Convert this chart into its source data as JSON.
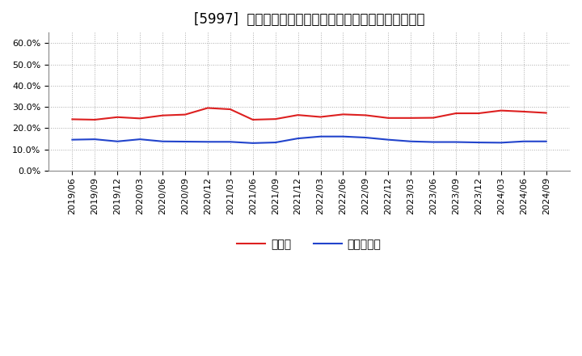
{
  "title": "[5997]  現預金、有利子負債の総資産に対する比率の推移",
  "x_labels": [
    "2019/06",
    "2019/09",
    "2019/12",
    "2020/03",
    "2020/06",
    "2020/09",
    "2020/12",
    "2021/03",
    "2021/06",
    "2021/09",
    "2021/12",
    "2022/03",
    "2022/06",
    "2022/09",
    "2022/12",
    "2023/03",
    "2023/06",
    "2023/09",
    "2023/12",
    "2024/03",
    "2024/06",
    "2024/09"
  ],
  "cash": [
    0.242,
    0.24,
    0.252,
    0.246,
    0.26,
    0.264,
    0.295,
    0.289,
    0.24,
    0.243,
    0.262,
    0.253,
    0.265,
    0.261,
    0.248,
    0.248,
    0.249,
    0.27,
    0.27,
    0.283,
    0.278,
    0.272
  ],
  "debt": [
    0.146,
    0.148,
    0.138,
    0.148,
    0.138,
    0.137,
    0.136,
    0.136,
    0.13,
    0.133,
    0.152,
    0.161,
    0.161,
    0.156,
    0.146,
    0.138,
    0.135,
    0.135,
    0.133,
    0.132,
    0.138,
    0.138
  ],
  "cash_color": "#dd2020",
  "debt_color": "#2244cc",
  "legend_cash": "現預金",
  "legend_debt": "有利子負債",
  "ylim": [
    0.0,
    0.65
  ],
  "yticks": [
    0.0,
    0.1,
    0.2,
    0.3,
    0.4,
    0.5,
    0.6
  ],
  "bg_color": "#ffffff",
  "grid_color": "#aaaaaa",
  "title_fontsize": 12,
  "legend_fontsize": 10,
  "tick_fontsize": 8
}
